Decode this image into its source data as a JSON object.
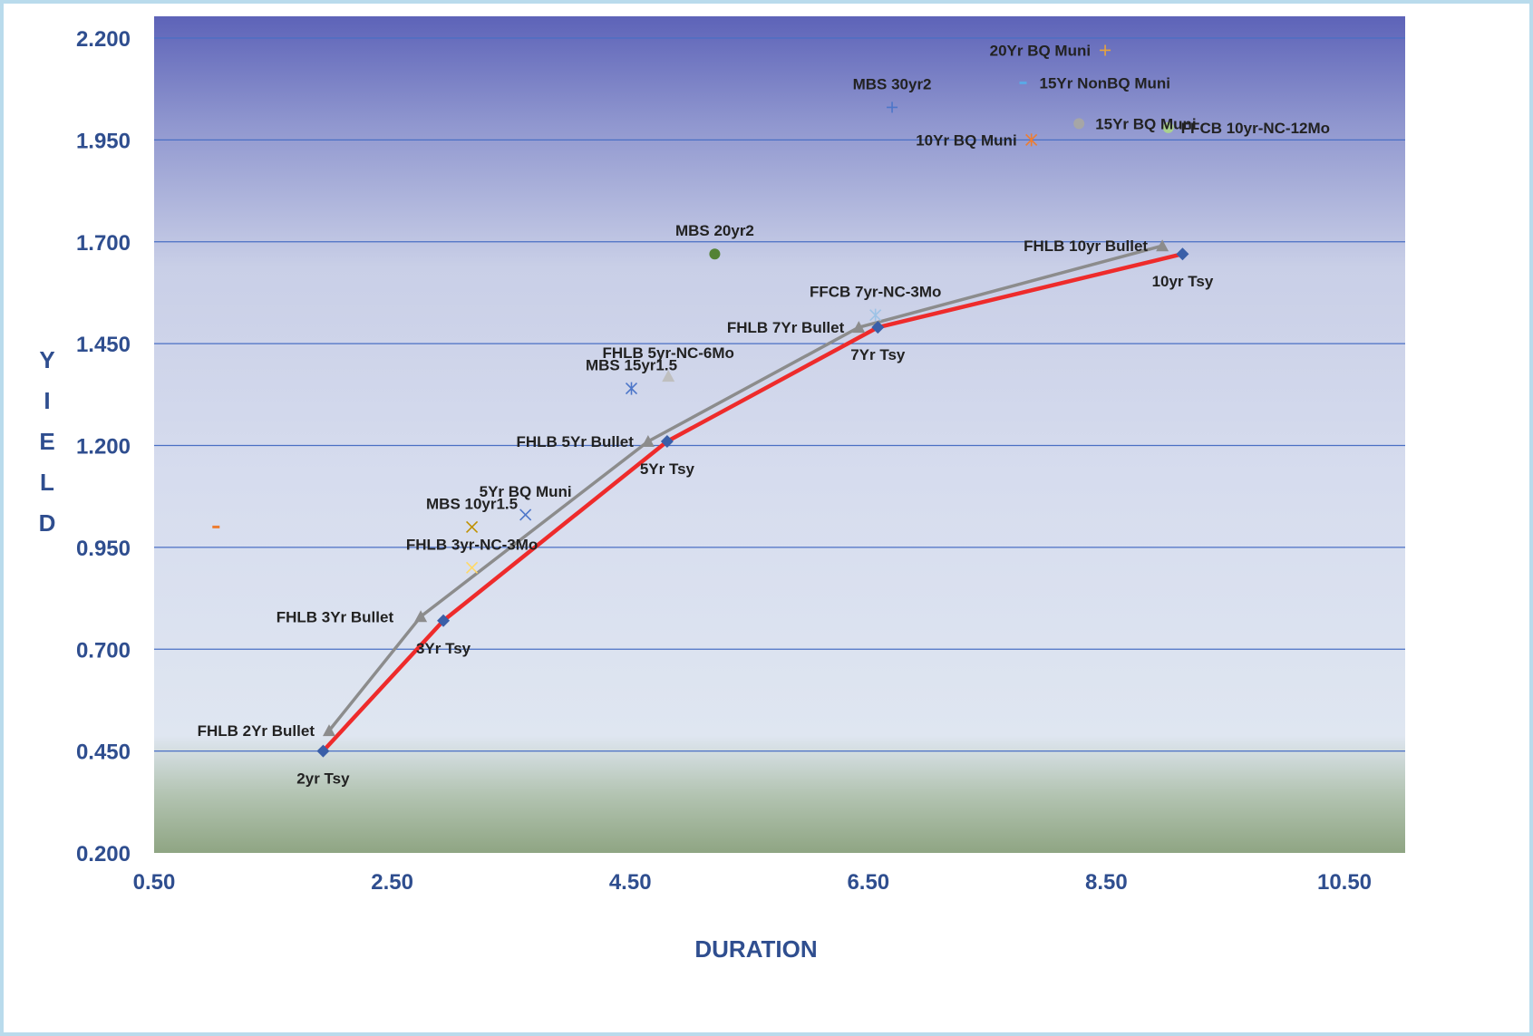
{
  "chart_data": {
    "type": "scatter",
    "title": "",
    "xlabel": "DURATION",
    "ylabel": "YIELD",
    "xlim": [
      0.5,
      11.0
    ],
    "ylim": [
      0.2,
      2.2
    ],
    "x_ticks": [
      "0.50",
      "2.50",
      "4.50",
      "6.50",
      "8.50",
      "10.50"
    ],
    "y_ticks": [
      "0.200",
      "0.450",
      "0.700",
      "0.950",
      "1.200",
      "1.450",
      "1.700",
      "1.950",
      "2.200"
    ],
    "grid": true,
    "background": "gradient: purple-blue at top, pale blue middle, green-gray at bottom",
    "series": [
      {
        "name": "",
        "kind": "line",
        "color": "#ee2b2b",
        "marker": "diamond",
        "marker_color": "#3a5fa8",
        "points": [
          {
            "label": "2yr Tsy",
            "x": 1.92,
            "y": 0.45
          },
          {
            "label": "3Yr Tsy",
            "x": 2.93,
            "y": 0.77
          },
          {
            "label": "5Yr Tsy",
            "x": 4.81,
            "y": 1.21
          },
          {
            "label": "7Yr Tsy",
            "x": 6.58,
            "y": 1.49
          },
          {
            "label": "10yr Tsy",
            "x": 9.14,
            "y": 1.67
          }
        ]
      },
      {
        "name": "",
        "kind": "line",
        "color": "#8c8c8c",
        "marker": "triangle",
        "marker_color": "#8c8c8c",
        "points": [
          {
            "label": "FHLB 2Yr Bullet",
            "x": 1.97,
            "y": 0.5
          },
          {
            "label": "FHLB 3Yr Bullet",
            "x": 2.74,
            "y": 0.78
          },
          {
            "label": "FHLB 5Yr Bullet",
            "x": 4.65,
            "y": 1.21
          },
          {
            "label": "FHLB 7Yr Bullet",
            "x": 6.42,
            "y": 1.49
          },
          {
            "label": "FHLB 10yr Bullet",
            "x": 8.97,
            "y": 1.69
          }
        ]
      },
      {
        "label": "20Yr BQ Muni",
        "kind": "point",
        "marker": "plus",
        "color": "#e8a33c",
        "x": 8.49,
        "y": 2.17
      },
      {
        "label": "15Yr NonBQ Muni",
        "kind": "point",
        "marker": "dash",
        "color": "#5aa9e6",
        "x": 7.8,
        "y": 2.09
      },
      {
        "label": "MBS 30yr2",
        "kind": "point",
        "marker": "plus",
        "color": "#4d76c9",
        "x": 6.7,
        "y": 2.03
      },
      {
        "label": "15Yr BQ Muni",
        "kind": "point",
        "marker": "circle",
        "color": "#a6a6a6",
        "x": 8.27,
        "y": 1.99
      },
      {
        "label": "FFCB 10yr-NC-12Mo",
        "kind": "point",
        "marker": "circle",
        "color": "#a9d18e",
        "x": 9.02,
        "y": 1.98
      },
      {
        "label": "10Yr BQ Muni",
        "kind": "point",
        "marker": "star",
        "color": "#ed7d31",
        "x": 7.87,
        "y": 1.95
      },
      {
        "label": "MBS 20yr2",
        "kind": "point",
        "marker": "circle",
        "color": "#548235",
        "x": 5.21,
        "y": 1.67
      },
      {
        "label": "FFCB 7yr-NC-3Mo",
        "kind": "point",
        "marker": "star",
        "color": "#9dc3e6",
        "x": 6.56,
        "y": 1.52
      },
      {
        "label": "FHLB 5yr-NC-6Mo",
        "kind": "point",
        "marker": "triangle",
        "color": "#bfbfbf",
        "x": 4.82,
        "y": 1.37
      },
      {
        "label": "MBS 15yr1.5",
        "kind": "point",
        "marker": "star",
        "color": "#4d76c9",
        "x": 4.51,
        "y": 1.34
      },
      {
        "label": "5Yr BQ Muni",
        "kind": "point",
        "marker": "x",
        "color": "#4d76c9",
        "x": 3.62,
        "y": 1.03
      },
      {
        "label": "MBS 10yr1.5",
        "kind": "point",
        "marker": "x",
        "color": "#bf9000",
        "x": 3.17,
        "y": 1.0
      },
      {
        "label": "FHLB 3yr-NC-3Mo",
        "kind": "point",
        "marker": "x",
        "color": "#ffd966",
        "x": 3.17,
        "y": 0.9
      },
      {
        "label": "",
        "kind": "point",
        "marker": "dash",
        "color": "#ed7d31",
        "x": 1.02,
        "y": 1.0
      }
    ]
  }
}
